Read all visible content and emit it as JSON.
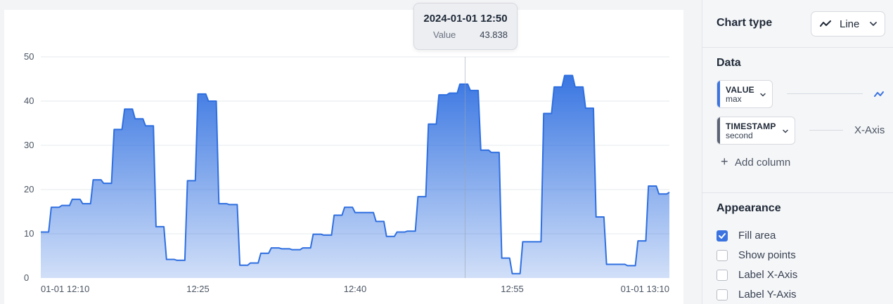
{
  "chart_data": {
    "type": "area",
    "y_ticks": [
      "0",
      "10",
      "20",
      "30",
      "40",
      "50"
    ],
    "x_tick_labels": [
      "01-01 12:10",
      "12:25",
      "12:40",
      "12:55",
      "01-01 13:10"
    ],
    "ylim": [
      0,
      50
    ],
    "grid": true,
    "series": [
      {
        "name": "VALUE",
        "color": "#2f6fe0",
        "x": [
          "12:10:00",
          "12:10:45",
          "12:11:00",
          "12:11:45",
          "12:12:00",
          "12:12:45",
          "12:13:00",
          "12:13:45",
          "12:14:00",
          "12:14:45",
          "12:15:00",
          "12:15:45",
          "12:16:00",
          "12:16:45",
          "12:17:00",
          "12:17:45",
          "12:18:00",
          "12:18:45",
          "12:19:00",
          "12:19:45",
          "12:20:00",
          "12:20:45",
          "12:21:00",
          "12:21:45",
          "12:22:00",
          "12:22:45",
          "12:23:00",
          "12:23:45",
          "12:24:00",
          "12:24:45",
          "12:25:00",
          "12:25:45",
          "12:26:00",
          "12:26:45",
          "12:27:00",
          "12:27:45",
          "12:28:00",
          "12:28:45",
          "12:29:00",
          "12:29:45",
          "12:30:00",
          "12:30:45",
          "12:31:00",
          "12:31:45",
          "12:32:00",
          "12:32:45",
          "12:33:00",
          "12:33:45",
          "12:34:00",
          "12:34:45",
          "12:35:00",
          "12:35:45",
          "12:36:00",
          "12:36:45",
          "12:37:00",
          "12:37:45",
          "12:38:00",
          "12:38:45",
          "12:39:00",
          "12:39:45",
          "12:40:00",
          "12:40:45",
          "12:41:00",
          "12:41:45",
          "12:42:00",
          "12:42:45",
          "12:43:00",
          "12:43:45",
          "12:44:00",
          "12:44:45",
          "12:45:00",
          "12:45:45",
          "12:46:00",
          "12:46:45",
          "12:47:00",
          "12:47:45",
          "12:48:00",
          "12:48:45",
          "12:49:00",
          "12:49:45",
          "12:50:00",
          "12:50:45",
          "12:51:00",
          "12:51:45",
          "12:52:00",
          "12:52:45",
          "12:53:00",
          "12:53:45",
          "12:54:00",
          "12:54:45",
          "12:55:00",
          "12:55:45",
          "12:56:00",
          "12:56:45",
          "12:57:00",
          "12:57:45",
          "12:58:00",
          "12:58:45",
          "12:59:00",
          "12:59:45",
          "13:00:00",
          "13:00:45",
          "13:01:00",
          "13:01:45",
          "13:02:00",
          "13:02:45",
          "13:03:00",
          "13:03:45",
          "13:04:00",
          "13:04:45",
          "13:05:00",
          "13:05:45",
          "13:06:00",
          "13:06:45",
          "13:07:00",
          "13:07:45",
          "13:08:00",
          "13:08:45",
          "13:09:00",
          "13:09:45",
          "13:10:00"
        ],
        "values": [
          10.4,
          10.4,
          16.0,
          16.0,
          16.4,
          16.4,
          17.8,
          17.8,
          16.8,
          16.8,
          22.2,
          22.2,
          21.4,
          21.4,
          33.6,
          33.6,
          38.2,
          38.2,
          36.0,
          36.0,
          34.4,
          34.4,
          11.6,
          11.6,
          4.2,
          4.2,
          4.0,
          4.0,
          22.0,
          22.0,
          41.6,
          41.6,
          40.0,
          40.0,
          16.8,
          16.8,
          16.6,
          16.6,
          2.9,
          2.9,
          3.4,
          3.4,
          5.6,
          5.6,
          6.8,
          6.8,
          6.6,
          6.6,
          6.4,
          6.4,
          6.8,
          6.8,
          9.9,
          9.9,
          9.7,
          9.7,
          14.2,
          14.2,
          16.0,
          16.0,
          14.8,
          14.8,
          14.8,
          14.8,
          12.8,
          12.8,
          9.4,
          9.4,
          10.4,
          10.4,
          10.6,
          10.6,
          18.4,
          18.4,
          34.8,
          34.8,
          41.4,
          41.4,
          41.8,
          41.8,
          43.838,
          43.838,
          42.4,
          42.4,
          28.9,
          28.9,
          28.4,
          28.4,
          4.5,
          4.5,
          1.0,
          1.0,
          8.2,
          8.2,
          8.2,
          8.2,
          37.2,
          37.2,
          43.2,
          43.2,
          45.8,
          45.8,
          43.2,
          43.2,
          38.4,
          38.4,
          13.8,
          13.8,
          3.1,
          3.1,
          3.1,
          3.1,
          2.8,
          2.8,
          8.4,
          8.4,
          20.8,
          20.8,
          19.0,
          19.0,
          19.4
        ]
      }
    ],
    "highlight": {
      "x": "2024-01-01 12:50",
      "value": "43.838"
    }
  },
  "tooltip": {
    "title": "2024-01-01 12:50",
    "label": "Value",
    "value": "43.838"
  },
  "sidebar": {
    "chart_type": {
      "title": "Chart type",
      "selected": "Line",
      "icon": "line-chart-icon"
    },
    "data": {
      "title": "Data",
      "value_column": {
        "name": "VALUE",
        "agg": "max",
        "accent": "#3b74e0"
      },
      "timestamp_column": {
        "name": "TIMESTAMP",
        "agg": "second",
        "accent": "#5b6474",
        "axis": "X-Axis"
      },
      "add_column": "Add column"
    },
    "appearance": {
      "title": "Appearance",
      "options": [
        {
          "label": "Fill area",
          "checked": true
        },
        {
          "label": "Show points",
          "checked": false
        },
        {
          "label": "Label X-Axis",
          "checked": false
        },
        {
          "label": "Label Y-Axis",
          "checked": false
        }
      ]
    }
  }
}
